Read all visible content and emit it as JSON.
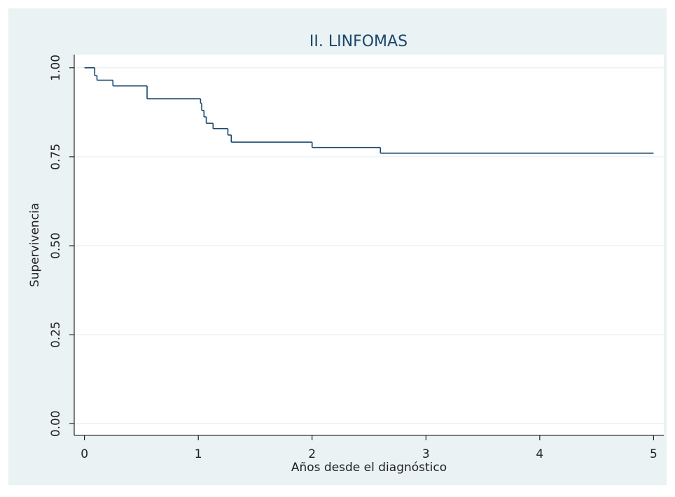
{
  "chart_data": {
    "type": "step",
    "title": "II. LINFOMAS",
    "xlabel": "Años desde el diagnóstico",
    "ylabel": "Supervivencia",
    "x": [
      0,
      0.09,
      0.11,
      0.25,
      0.55,
      1.02,
      1.03,
      1.05,
      1.07,
      1.13,
      1.26,
      1.29,
      2.0,
      2.6,
      5.0
    ],
    "values": [
      1.0,
      0.978,
      0.965,
      0.949,
      0.913,
      0.9,
      0.88,
      0.862,
      0.844,
      0.829,
      0.811,
      0.791,
      0.776,
      0.76,
      0.76
    ],
    "color": "#1a476f",
    "xlim": [
      -0.09,
      5.09
    ],
    "xticks": [
      0,
      1,
      2,
      3,
      4,
      5
    ],
    "ylim": [
      -0.033,
      1.037
    ],
    "yticks": [
      {
        "value": 0,
        "label": "0.00"
      },
      {
        "value": 0.25,
        "label": "0.25"
      },
      {
        "value": 0.5,
        "label": "0.50"
      },
      {
        "value": 0.75,
        "label": "0.75"
      },
      {
        "value": 1,
        "label": "1.00"
      }
    ],
    "grid": true
  }
}
